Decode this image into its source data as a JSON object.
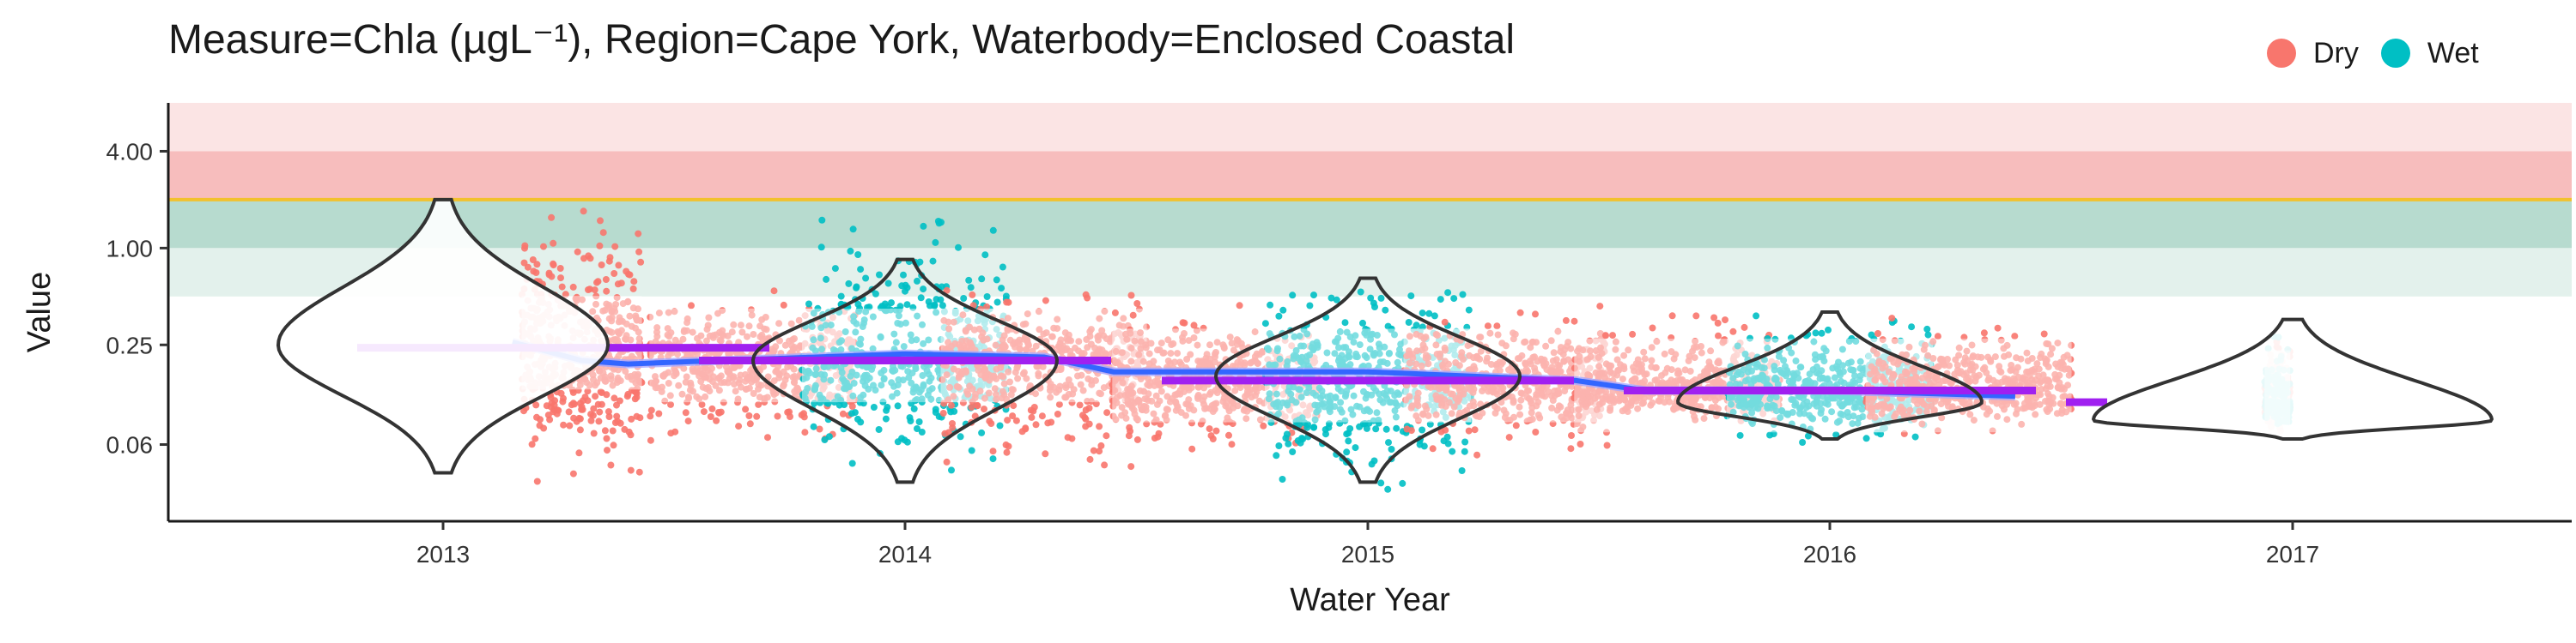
{
  "chart_data": {
    "type": "violin",
    "title": "Measure=Chla (µgL⁻¹), Region=Cape York, Waterbody=Enclosed Coastal",
    "xlabel": "Water Year",
    "ylabel": "Value",
    "y_scale": "log2",
    "ylim": [
      0.02,
      8.0
    ],
    "y_ticks": [
      0.06,
      0.25,
      1.0,
      4.0
    ],
    "y_tick_labels": [
      "0.06",
      "0.25",
      "1.00",
      "4.00"
    ],
    "x_categories": [
      "2013",
      "2014",
      "2015",
      "2016",
      "2017"
    ],
    "grid": false,
    "legend": {
      "placement": "top-right",
      "items": [
        {
          "label": "Dry",
          "color": "#F8766D"
        },
        {
          "label": "Wet",
          "color": "#00BFC4"
        }
      ]
    },
    "guideline": {
      "value": 2.0,
      "color": "#F2C12E"
    },
    "bands": [
      {
        "from": 4.0,
        "to": 8.0,
        "color": "#FBE4E4"
      },
      {
        "from": 2.0,
        "to": 4.0,
        "color": "#F7BDBD"
      },
      {
        "from": 1.0,
        "to": 2.0,
        "color": "#B7DBCF"
      },
      {
        "from": 0.5,
        "to": 1.0,
        "color": "#E3F1EC"
      }
    ],
    "violins": [
      {
        "year": "2013",
        "min": 0.04,
        "max": 2.0,
        "mode": 0.25
      },
      {
        "year": "2014",
        "min": 0.035,
        "max": 0.85,
        "mode": 0.2
      },
      {
        "year": "2015",
        "min": 0.035,
        "max": 0.65,
        "mode": 0.16
      },
      {
        "year": "2016",
        "min": 0.065,
        "max": 0.4,
        "mode": 0.11
      },
      {
        "year": "2017",
        "min": 0.065,
        "max": 0.36,
        "mode": 0.085
      }
    ],
    "seasons": [
      {
        "year": "2013",
        "season": "Dry",
        "period": "late",
        "median": 0.24,
        "low": 0.035,
        "high": 2.0
      },
      {
        "year": "2014",
        "season": "Dry",
        "period": "early",
        "median": 0.2,
        "low": 0.06,
        "high": 0.55
      },
      {
        "year": "2014",
        "season": "Wet",
        "period": "mid",
        "median": 0.2,
        "low": 0.04,
        "high": 1.5
      },
      {
        "year": "2014",
        "season": "Dry",
        "period": "late",
        "median": 0.2,
        "low": 0.04,
        "high": 0.55
      },
      {
        "year": "2015",
        "season": "Dry",
        "period": "early",
        "median": 0.15,
        "low": 0.05,
        "high": 0.45
      },
      {
        "year": "2015",
        "season": "Wet",
        "period": "mid",
        "median": 0.15,
        "low": 0.03,
        "high": 0.7
      },
      {
        "year": "2015",
        "season": "Dry",
        "period": "late",
        "median": 0.15,
        "low": 0.05,
        "high": 0.45
      },
      {
        "year": "2016",
        "season": "Dry",
        "period": "early",
        "median": 0.13,
        "low": 0.08,
        "high": 0.38
      },
      {
        "year": "2016",
        "season": "Wet",
        "period": "mid",
        "median": 0.13,
        "low": 0.06,
        "high": 0.4
      },
      {
        "year": "2016",
        "season": "Dry",
        "period": "late",
        "median": 0.13,
        "low": 0.07,
        "high": 0.38
      },
      {
        "year": "2017",
        "season": "Dry",
        "period": "early",
        "median": 0.11,
        "low": 0.07,
        "high": 0.35
      },
      {
        "year": "2017",
        "season": "Wet",
        "period": "early",
        "median": 0.11,
        "low": 0.07,
        "high": 0.3
      }
    ],
    "median_lines": [
      {
        "year": "2013",
        "value": 0.24,
        "color": "#A020F0"
      },
      {
        "year": "2014",
        "value": 0.2,
        "color": "#A020F0"
      },
      {
        "year": "2015",
        "value": 0.15,
        "color": "#A020F0"
      },
      {
        "year": "2016",
        "value": 0.13,
        "color": "#A020F0"
      },
      {
        "year": "2017",
        "value": 0.11,
        "color": "#A020F0"
      }
    ],
    "trend": {
      "color": "#3366FF",
      "smooth_color": "#A6A6FF",
      "points": [
        {
          "x": 2013.15,
          "y": 0.26
        },
        {
          "x": 2013.3,
          "y": 0.2
        },
        {
          "x": 2013.4,
          "y": 0.19
        },
        {
          "x": 2013.6,
          "y": 0.2
        },
        {
          "x": 2014.0,
          "y": 0.22
        },
        {
          "x": 2014.3,
          "y": 0.21
        },
        {
          "x": 2014.45,
          "y": 0.17
        },
        {
          "x": 2014.6,
          "y": 0.17
        },
        {
          "x": 2015.0,
          "y": 0.17
        },
        {
          "x": 2015.45,
          "y": 0.15
        },
        {
          "x": 2015.6,
          "y": 0.13
        },
        {
          "x": 2016.0,
          "y": 0.13
        },
        {
          "x": 2016.4,
          "y": 0.12
        }
      ]
    },
    "colors": {
      "dry": "#F8766D",
      "wet": "#00BFC4",
      "violin_stroke": "#333333"
    }
  }
}
